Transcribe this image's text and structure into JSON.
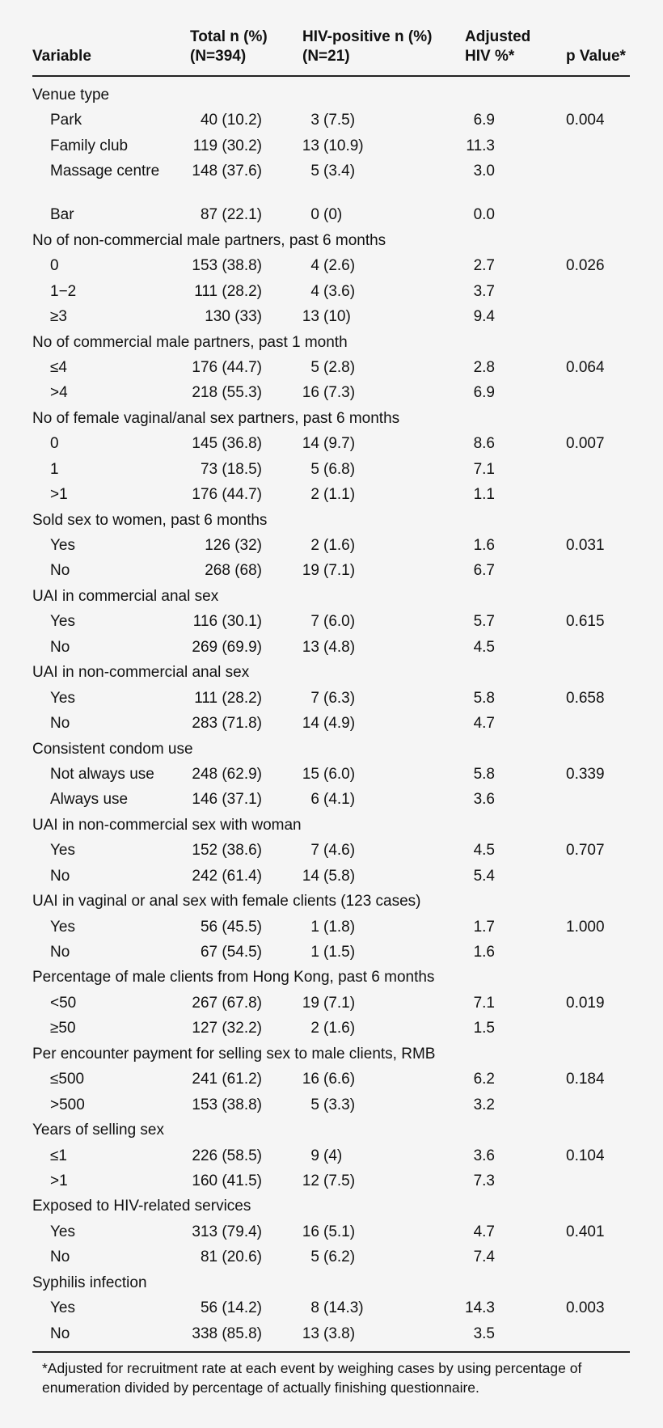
{
  "header": {
    "variable": "Variable",
    "total_1": "Total n (%)",
    "total_2": "(N=394)",
    "hiv_1": "HIV-positive n (%)",
    "hiv_2": "(N=21)",
    "adj_1": "Adjusted",
    "adj_2": "HIV %*",
    "p": "p Value*"
  },
  "sections": [
    {
      "label": "Venue type",
      "rows": [
        {
          "var": "Park",
          "total": "40 (10.2)",
          "hiv": "3 (7.5)",
          "adj": "6.9",
          "p": "0.004"
        },
        {
          "var": "Family club",
          "total": "119 (30.2)",
          "hiv": "13 (10.9)",
          "adj": "11.3",
          "p": ""
        },
        {
          "var": "Massage centre",
          "total": "148 (37.6)",
          "hiv": "5 (3.4)",
          "adj": "3.0",
          "p": ""
        },
        {
          "var": "Bar",
          "total": "87 (22.1)",
          "hiv": "0 (0)",
          "adj": "0.0",
          "p": ""
        }
      ]
    },
    {
      "label": "No of non-commercial male partners, past 6 months",
      "rows": [
        {
          "var": "0",
          "total": "153 (38.8)",
          "hiv": "4 (2.6)",
          "adj": "2.7",
          "p": "0.026"
        },
        {
          "var": "1−2",
          "total": "111 (28.2)",
          "hiv": "4 (3.6)",
          "adj": "3.7",
          "p": ""
        },
        {
          "var": "≥3",
          "total": "130 (33)",
          "hiv": "13 (10)",
          "adj": "9.4",
          "p": ""
        }
      ]
    },
    {
      "label": "No of commercial male partners, past 1 month",
      "rows": [
        {
          "var": "≤4",
          "total": "176 (44.7)",
          "hiv": "5 (2.8)",
          "adj": "2.8",
          "p": "0.064"
        },
        {
          "var": ">4",
          "total": "218 (55.3)",
          "hiv": "16 (7.3)",
          "adj": "6.9",
          "p": ""
        }
      ]
    },
    {
      "label": "No of female vaginal/anal sex partners, past 6 months",
      "rows": [
        {
          "var": "0",
          "total": "145 (36.8)",
          "hiv": "14 (9.7)",
          "adj": "8.6",
          "p": "0.007"
        },
        {
          "var": "1",
          "total": "73 (18.5)",
          "hiv": "5 (6.8)",
          "adj": "7.1",
          "p": ""
        },
        {
          "var": ">1",
          "total": "176 (44.7)",
          "hiv": "2 (1.1)",
          "adj": "1.1",
          "p": ""
        }
      ]
    },
    {
      "label": "Sold sex to women, past 6 months",
      "rows": [
        {
          "var": "Yes",
          "total": "126 (32)",
          "hiv": "2 (1.6)",
          "adj": "1.6",
          "p": "0.031"
        },
        {
          "var": "No",
          "total": "268 (68)",
          "hiv": "19 (7.1)",
          "adj": "6.7",
          "p": ""
        }
      ]
    },
    {
      "label": "UAI in commercial anal sex",
      "rows": [
        {
          "var": "Yes",
          "total": "116 (30.1)",
          "hiv": "7 (6.0)",
          "adj": "5.7",
          "p": "0.615"
        },
        {
          "var": "No",
          "total": "269 (69.9)",
          "hiv": "13 (4.8)",
          "adj": "4.5",
          "p": ""
        }
      ]
    },
    {
      "label": "UAI in non-commercial anal sex",
      "rows": [
        {
          "var": "Yes",
          "total": "111 (28.2)",
          "hiv": "7 (6.3)",
          "adj": "5.8",
          "p": "0.658"
        },
        {
          "var": "No",
          "total": "283 (71.8)",
          "hiv": "14 (4.9)",
          "adj": "4.7",
          "p": ""
        }
      ]
    },
    {
      "label": "Consistent condom use",
      "rows": [
        {
          "var": "Not always use",
          "total": "248 (62.9)",
          "hiv": "15 (6.0)",
          "adj": "5.8",
          "p": "0.339"
        },
        {
          "var": "Always use",
          "total": "146 (37.1)",
          "hiv": "6 (4.1)",
          "adj": "3.6",
          "p": ""
        }
      ]
    },
    {
      "label": "UAI in non-commercial sex with woman",
      "rows": [
        {
          "var": "Yes",
          "total": "152 (38.6)",
          "hiv": "7 (4.6)",
          "adj": "4.5",
          "p": "0.707"
        },
        {
          "var": "No",
          "total": "242 (61.4)",
          "hiv": "14 (5.8)",
          "adj": "5.4",
          "p": ""
        }
      ]
    },
    {
      "label": "UAI in vaginal or anal sex with female clients (123 cases)",
      "rows": [
        {
          "var": "Yes",
          "total": "56 (45.5)",
          "hiv": "1 (1.8)",
          "adj": "1.7",
          "p": "1.000"
        },
        {
          "var": "No",
          "total": "67 (54.5)",
          "hiv": "1 (1.5)",
          "adj": "1.6",
          "p": ""
        }
      ]
    },
    {
      "label": "Percentage of male clients from Hong Kong, past 6 months",
      "rows": [
        {
          "var": "<50",
          "total": "267 (67.8)",
          "hiv": "19 (7.1)",
          "adj": "7.1",
          "p": "0.019"
        },
        {
          "var": "≥50",
          "total": "127 (32.2)",
          "hiv": "2 (1.6)",
          "adj": "1.5",
          "p": ""
        }
      ]
    },
    {
      "label": "Per encounter payment for selling sex to male clients, RMB",
      "rows": [
        {
          "var": "≤500",
          "total": "241 (61.2)",
          "hiv": "16 (6.6)",
          "adj": "6.2",
          "p": "0.184"
        },
        {
          "var": ">500",
          "total": "153 (38.8)",
          "hiv": "5 (3.3)",
          "adj": "3.2",
          "p": ""
        }
      ]
    },
    {
      "label": "Years of selling sex",
      "rows": [
        {
          "var": "≤1",
          "total": "226 (58.5)",
          "hiv": "9 (4)",
          "adj": "3.6",
          "p": "0.104"
        },
        {
          "var": ">1",
          "total": "160 (41.5)",
          "hiv": "12 (7.5)",
          "adj": "7.3",
          "p": ""
        }
      ]
    },
    {
      "label": "Exposed to HIV-related services",
      "rows": [
        {
          "var": "Yes",
          "total": "313 (79.4)",
          "hiv": "16 (5.1)",
          "adj": "4.7",
          "p": "0.401"
        },
        {
          "var": "No",
          "total": "81 (20.6)",
          "hiv": "5 (6.2)",
          "adj": "7.4",
          "p": ""
        }
      ]
    },
    {
      "label": "Syphilis infection",
      "rows": [
        {
          "var": "Yes",
          "total": "56 (14.2)",
          "hiv": "8 (14.3)",
          "adj": "14.3",
          "p": "0.003"
        },
        {
          "var": "No",
          "total": "338 (85.8)",
          "hiv": "13 (3.8)",
          "adj": "3.5",
          "p": ""
        }
      ]
    }
  ],
  "footnote": "*Adjusted for recruitment rate at each event by weighing cases by using percentage of enumeration divided by percentage of actually finishing questionnaire."
}
